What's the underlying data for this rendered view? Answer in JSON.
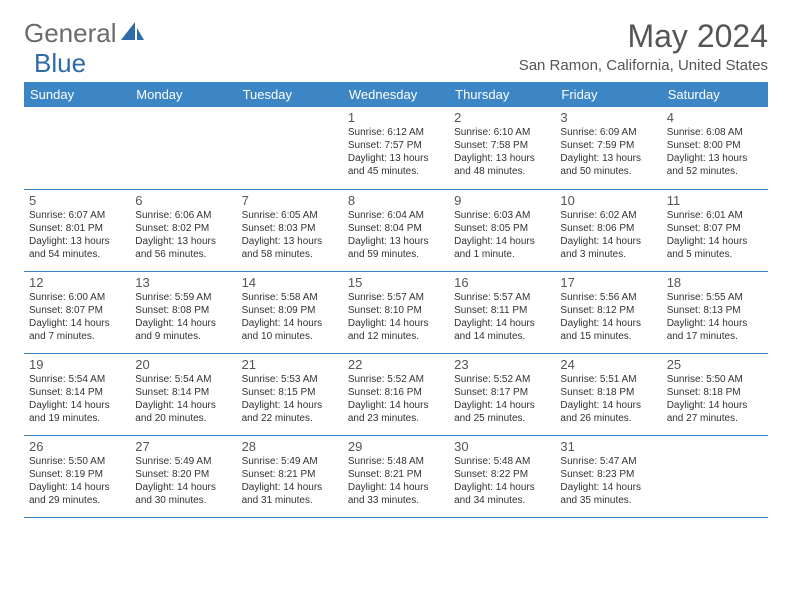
{
  "logo": {
    "text1": "General",
    "text2": "Blue"
  },
  "title": "May 2024",
  "location": "San Ramon, California, United States",
  "headers": [
    "Sunday",
    "Monday",
    "Tuesday",
    "Wednesday",
    "Thursday",
    "Friday",
    "Saturday"
  ],
  "colors": {
    "header_bg": "#3d86c6",
    "header_fg": "#ffffff",
    "border": "#3d86c6",
    "text": "#333333",
    "muted": "#555555",
    "logo_gray": "#6b6b6b",
    "logo_blue": "#2e6ca8"
  },
  "weeks": [
    [
      null,
      null,
      null,
      {
        "n": "1",
        "sr": "6:12 AM",
        "ss": "7:57 PM",
        "dl1": "13 hours",
        "dl2": "and 45 minutes."
      },
      {
        "n": "2",
        "sr": "6:10 AM",
        "ss": "7:58 PM",
        "dl1": "13 hours",
        "dl2": "and 48 minutes."
      },
      {
        "n": "3",
        "sr": "6:09 AM",
        "ss": "7:59 PM",
        "dl1": "13 hours",
        "dl2": "and 50 minutes."
      },
      {
        "n": "4",
        "sr": "6:08 AM",
        "ss": "8:00 PM",
        "dl1": "13 hours",
        "dl2": "and 52 minutes."
      }
    ],
    [
      {
        "n": "5",
        "sr": "6:07 AM",
        "ss": "8:01 PM",
        "dl1": "13 hours",
        "dl2": "and 54 minutes."
      },
      {
        "n": "6",
        "sr": "6:06 AM",
        "ss": "8:02 PM",
        "dl1": "13 hours",
        "dl2": "and 56 minutes."
      },
      {
        "n": "7",
        "sr": "6:05 AM",
        "ss": "8:03 PM",
        "dl1": "13 hours",
        "dl2": "and 58 minutes."
      },
      {
        "n": "8",
        "sr": "6:04 AM",
        "ss": "8:04 PM",
        "dl1": "13 hours",
        "dl2": "and 59 minutes."
      },
      {
        "n": "9",
        "sr": "6:03 AM",
        "ss": "8:05 PM",
        "dl1": "14 hours",
        "dl2": "and 1 minute."
      },
      {
        "n": "10",
        "sr": "6:02 AM",
        "ss": "8:06 PM",
        "dl1": "14 hours",
        "dl2": "and 3 minutes."
      },
      {
        "n": "11",
        "sr": "6:01 AM",
        "ss": "8:07 PM",
        "dl1": "14 hours",
        "dl2": "and 5 minutes."
      }
    ],
    [
      {
        "n": "12",
        "sr": "6:00 AM",
        "ss": "8:07 PM",
        "dl1": "14 hours",
        "dl2": "and 7 minutes."
      },
      {
        "n": "13",
        "sr": "5:59 AM",
        "ss": "8:08 PM",
        "dl1": "14 hours",
        "dl2": "and 9 minutes."
      },
      {
        "n": "14",
        "sr": "5:58 AM",
        "ss": "8:09 PM",
        "dl1": "14 hours",
        "dl2": "and 10 minutes."
      },
      {
        "n": "15",
        "sr": "5:57 AM",
        "ss": "8:10 PM",
        "dl1": "14 hours",
        "dl2": "and 12 minutes."
      },
      {
        "n": "16",
        "sr": "5:57 AM",
        "ss": "8:11 PM",
        "dl1": "14 hours",
        "dl2": "and 14 minutes."
      },
      {
        "n": "17",
        "sr": "5:56 AM",
        "ss": "8:12 PM",
        "dl1": "14 hours",
        "dl2": "and 15 minutes."
      },
      {
        "n": "18",
        "sr": "5:55 AM",
        "ss": "8:13 PM",
        "dl1": "14 hours",
        "dl2": "and 17 minutes."
      }
    ],
    [
      {
        "n": "19",
        "sr": "5:54 AM",
        "ss": "8:14 PM",
        "dl1": "14 hours",
        "dl2": "and 19 minutes."
      },
      {
        "n": "20",
        "sr": "5:54 AM",
        "ss": "8:14 PM",
        "dl1": "14 hours",
        "dl2": "and 20 minutes."
      },
      {
        "n": "21",
        "sr": "5:53 AM",
        "ss": "8:15 PM",
        "dl1": "14 hours",
        "dl2": "and 22 minutes."
      },
      {
        "n": "22",
        "sr": "5:52 AM",
        "ss": "8:16 PM",
        "dl1": "14 hours",
        "dl2": "and 23 minutes."
      },
      {
        "n": "23",
        "sr": "5:52 AM",
        "ss": "8:17 PM",
        "dl1": "14 hours",
        "dl2": "and 25 minutes."
      },
      {
        "n": "24",
        "sr": "5:51 AM",
        "ss": "8:18 PM",
        "dl1": "14 hours",
        "dl2": "and 26 minutes."
      },
      {
        "n": "25",
        "sr": "5:50 AM",
        "ss": "8:18 PM",
        "dl1": "14 hours",
        "dl2": "and 27 minutes."
      }
    ],
    [
      {
        "n": "26",
        "sr": "5:50 AM",
        "ss": "8:19 PM",
        "dl1": "14 hours",
        "dl2": "and 29 minutes."
      },
      {
        "n": "27",
        "sr": "5:49 AM",
        "ss": "8:20 PM",
        "dl1": "14 hours",
        "dl2": "and 30 minutes."
      },
      {
        "n": "28",
        "sr": "5:49 AM",
        "ss": "8:21 PM",
        "dl1": "14 hours",
        "dl2": "and 31 minutes."
      },
      {
        "n": "29",
        "sr": "5:48 AM",
        "ss": "8:21 PM",
        "dl1": "14 hours",
        "dl2": "and 33 minutes."
      },
      {
        "n": "30",
        "sr": "5:48 AM",
        "ss": "8:22 PM",
        "dl1": "14 hours",
        "dl2": "and 34 minutes."
      },
      {
        "n": "31",
        "sr": "5:47 AM",
        "ss": "8:23 PM",
        "dl1": "14 hours",
        "dl2": "and 35 minutes."
      },
      null
    ]
  ]
}
